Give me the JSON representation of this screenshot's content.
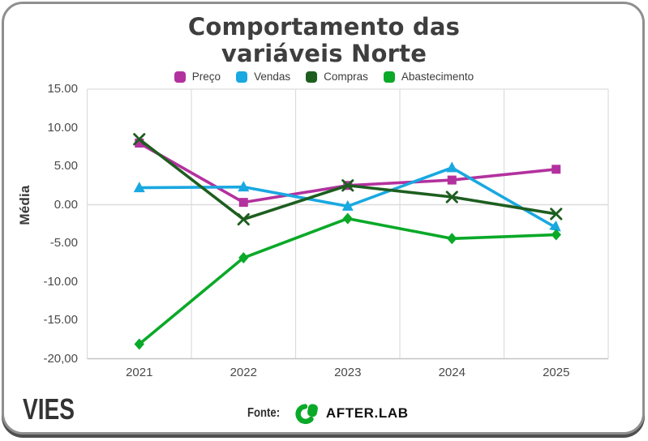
{
  "title": {
    "line1": "Comportamento das",
    "line2": "variáveis Norte"
  },
  "footer": {
    "brand": "VIES",
    "source_label": "Fonte:",
    "source_brand": "AFTER.LAB",
    "source_logo_color": "#0AA928"
  },
  "card": {
    "border_color": "#8F8F8F",
    "shadow_color": "#4F4F4F",
    "background": "#FFFFFF"
  },
  "chart_data": {
    "type": "line",
    "title": "Comportamento das variáveis Norte",
    "categories": [
      "2021",
      "2022",
      "2023",
      "2024",
      "2025"
    ],
    "series": [
      {
        "name": "Preço",
        "color": "#B3319E",
        "marker": "square",
        "values": [
          8.0,
          0.3,
          2.5,
          3.2,
          4.6
        ]
      },
      {
        "name": "Vendas",
        "color": "#19A8E0",
        "marker": "triangle",
        "values": [
          2.2,
          2.3,
          -0.2,
          4.8,
          -3.0
        ]
      },
      {
        "name": "Compras",
        "color": "#1D5E1F",
        "marker": "x",
        "values": [
          8.5,
          -1.9,
          2.5,
          1.0,
          -1.2
        ]
      },
      {
        "name": "Abastecimento",
        "color": "#0AA928",
        "marker": "diamond",
        "values": [
          -18.1,
          -6.9,
          -1.8,
          -4.4,
          -3.9
        ]
      }
    ],
    "xlabel": "",
    "ylabel": "Média",
    "ylim": [
      -20,
      15
    ],
    "y_ticks": [
      {
        "value": 15,
        "label": "15.00"
      },
      {
        "value": 10,
        "label": "10.00"
      },
      {
        "value": 5,
        "label": "5.00"
      },
      {
        "value": 0,
        "label": "0.00"
      },
      {
        "value": -5,
        "label": "-5.00"
      },
      {
        "value": -10,
        "label": "-10.00"
      },
      {
        "value": -15,
        "label": "-15.00"
      },
      {
        "value": -20,
        "label": "-20,00"
      }
    ],
    "legend_position": "top",
    "grid": {
      "vertical": true,
      "horizontal_zero_line": true
    },
    "grid_color": "#DCDCDC",
    "axis_line_color": "#C4C4C4"
  }
}
